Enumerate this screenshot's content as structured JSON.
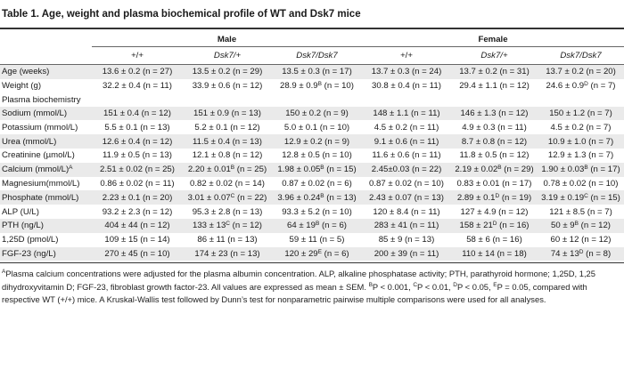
{
  "title": "Table 1. Age, weight and plasma biochemical profile of WT and Dsk7 mice",
  "groups": {
    "male": "Male",
    "female": "Female"
  },
  "genotypes": {
    "male_wt": "+/+",
    "male_het": "Dsk7/+",
    "male_hom": "Dsk7/Dsk7",
    "female_wt": "+/+",
    "female_het": "Dsk7/+",
    "female_hom": "Dsk7/Dsk7"
  },
  "rows": [
    {
      "label": "Age (weeks)",
      "cells": [
        [
          "13.6 ± 0.2 (n = 27)",
          ""
        ],
        [
          "13.5 ± 0.2 (n = 29)",
          ""
        ],
        [
          "13.5 ± 0.3 (n = 17)",
          ""
        ],
        [
          "13.7 ± 0.3 (n = 24)",
          ""
        ],
        [
          "13.7 ± 0.2 (n = 31)",
          ""
        ],
        [
          "13.7 ± 0.2 (n = 20)",
          ""
        ]
      ]
    },
    {
      "label": "Weight (g)",
      "cells": [
        [
          "32.2 ± 0.4 (n = 11)",
          ""
        ],
        [
          "33.9 ± 0.6 (n = 12)",
          ""
        ],
        [
          "28.9 ± 0.9",
          "B",
          " (n = 10)"
        ],
        [
          "30.8 ± 0.4 (n = 11)",
          ""
        ],
        [
          "29.4 ± 1.1 (n = 12)",
          ""
        ],
        [
          "24.6 ± 0.9",
          "D",
          " (n = 7)"
        ]
      ]
    },
    {
      "label": "Plasma biochemistry",
      "section": true
    },
    {
      "label": "Sodium (mmol/L)",
      "cells": [
        [
          "151 ± 0.4 (n = 12)",
          ""
        ],
        [
          "151 ± 0.9 (n = 13)",
          ""
        ],
        [
          "150 ± 0.2 (n = 9)",
          ""
        ],
        [
          "148 ± 1.1 (n = 11)",
          ""
        ],
        [
          "146 ± 1.3 (n = 12)",
          ""
        ],
        [
          "150 ± 1.2 (n = 7)",
          ""
        ]
      ]
    },
    {
      "label": "Potassium (mmol/L)",
      "cells": [
        [
          "5.5 ± 0.1 (n = 13)",
          ""
        ],
        [
          "5.2 ± 0.1 (n = 12)",
          ""
        ],
        [
          "5.0 ± 0.1 (n = 10)",
          ""
        ],
        [
          "4.5 ± 0.2 (n = 11)",
          ""
        ],
        [
          "4.9 ± 0.3 (n = 11)",
          ""
        ],
        [
          "4.5 ± 0.2 (n = 7)",
          ""
        ]
      ]
    },
    {
      "label": "Urea (mmol/L)",
      "cells": [
        [
          "12.6 ± 0.4 (n = 12)",
          ""
        ],
        [
          "11.5 ± 0.4 (n = 13)",
          ""
        ],
        [
          "12.9 ± 0.2 (n = 9)",
          ""
        ],
        [
          "9.1 ± 0.6 (n = 11)",
          ""
        ],
        [
          "8.7 ± 0.8 (n = 12)",
          ""
        ],
        [
          "10.9 ± 1.0 (n = 7)",
          ""
        ]
      ]
    },
    {
      "label": "Creatinine (µmol/L)",
      "cells": [
        [
          "11.9 ± 0.5 (n = 13)",
          ""
        ],
        [
          "12.1 ± 0.8 (n = 12)",
          ""
        ],
        [
          "12.8 ± 0.5 (n = 10)",
          ""
        ],
        [
          "11.6 ± 0.6 (n = 11)",
          ""
        ],
        [
          "11.8 ± 0.5 (n = 12)",
          ""
        ],
        [
          "12.9 ± 1.3 (n = 7)",
          ""
        ]
      ]
    },
    {
      "label": "Calcium (mmol/L)",
      "label_sup": "A",
      "tall": true,
      "cells": [
        [
          "2.51 ± 0.02 (n = 25)",
          ""
        ],
        [
          "2.20 ± 0.01",
          "B",
          " (n = 25)"
        ],
        [
          "1.98 ± 0.05",
          "B",
          " (n = 15)"
        ],
        [
          "2.45±0.03 (n = 22)",
          ""
        ],
        [
          "2.19 ± 0.02",
          "B",
          " (n = 29)"
        ],
        [
          "1.90 ± 0.03",
          "B",
          " (n = 17)"
        ]
      ]
    },
    {
      "label": "Magnesium(mmol/L)",
      "cells": [
        [
          "0.86 ± 0.02 (n = 11)",
          ""
        ],
        [
          "0.82 ± 0.02 (n = 14)",
          ""
        ],
        [
          "0.87 ± 0.02 (n = 6)",
          ""
        ],
        [
          "0.87 ± 0.02 (n = 10)",
          ""
        ],
        [
          "0.83 ± 0.01 (n = 17)",
          ""
        ],
        [
          "0.78 ± 0.02 (n = 10)",
          ""
        ]
      ]
    },
    {
      "label": "Phosphate (mmol/L)",
      "cells": [
        [
          "2.23 ± 0.1 (n = 20)",
          ""
        ],
        [
          "3.01 ± 0.07",
          "C",
          " (n = 22)"
        ],
        [
          "3.96 ± 0.24",
          "B",
          " (n = 13)"
        ],
        [
          "2.43 ± 0.07 (n = 13)",
          ""
        ],
        [
          "2.89 ± 0.1",
          "D",
          " (n = 19)"
        ],
        [
          "3.19 ± 0.19",
          "C",
          " (n = 15)"
        ]
      ]
    },
    {
      "label": "ALP (U/L)",
      "cells": [
        [
          "93.2 ± 2.3 (n = 12)",
          ""
        ],
        [
          "95.3 ± 2.8 (n = 13)",
          ""
        ],
        [
          "93.3 ± 5.2 (n = 10)",
          ""
        ],
        [
          "120 ± 8.4 (n = 11)",
          ""
        ],
        [
          "127 ± 4.9 (n = 12)",
          ""
        ],
        [
          "121 ± 8.5 (n = 7)",
          ""
        ]
      ]
    },
    {
      "label": "PTH (ng/L)",
      "cells": [
        [
          "404 ± 44 (n = 12)",
          ""
        ],
        [
          "133 ± 13",
          "C",
          " (n = 12)"
        ],
        [
          "64 ± 19",
          "B",
          " (n = 6)"
        ],
        [
          "283 ± 41 (n = 11)",
          ""
        ],
        [
          "158 ± 21",
          "D",
          " (n = 16)"
        ],
        [
          "50 ± 9",
          "B",
          " (n = 12)"
        ]
      ]
    },
    {
      "label": "1,25D (pmol/L)",
      "cells": [
        [
          "109 ± 15 (n = 14)",
          ""
        ],
        [
          "86 ± 11 (n = 13)",
          ""
        ],
        [
          "59 ± 11 (n = 5)",
          ""
        ],
        [
          "85 ± 9 (n = 13)",
          ""
        ],
        [
          "58 ± 6 (n = 16)",
          ""
        ],
        [
          "60 ± 12 (n = 12)",
          ""
        ]
      ]
    },
    {
      "label": "FGF-23 (ng/L)",
      "cells": [
        [
          "270 ± 45 (n = 10)",
          ""
        ],
        [
          "174 ± 23 (n = 13)",
          ""
        ],
        [
          "120 ± 29",
          "E",
          " (n = 6)"
        ],
        [
          "200 ± 39 (n = 11)",
          ""
        ],
        [
          "110 ± 14 (n = 18)",
          ""
        ],
        [
          "74 ± 13",
          "D",
          " (n = 8)"
        ]
      ]
    }
  ],
  "footnote": {
    "a_sup": "A",
    "a_text": "Plasma calcium concentrations were adjusted for the plasma albumin concentration. ALP, alkaline phosphatase activity; PTH, parathyroid hormone; 1,25D, 1,25 dihydroxyvitamin D; FGF-23, fibroblast growth factor-23. All values are expressed as mean ± SEM. ",
    "b_sup": "B",
    "b_text": "P < 0.001, ",
    "c_sup": "C",
    "c_text": "P < 0.01, ",
    "d_sup": "D",
    "d_text": "P < 0.05, ",
    "e_sup": "E",
    "e_text": "P = 0.05, compared with respective WT (+/+) mice. A Kruskal-Wallis test followed by Dunn’s test for nonparametric pairwise multiple comparisons were used for all analyses."
  }
}
